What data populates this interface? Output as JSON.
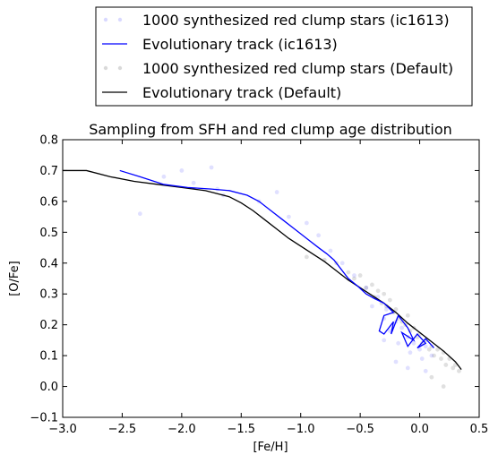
{
  "chart_data": {
    "type": "scatter",
    "title": "Sampling from SFH and red clump age distribution",
    "xlabel": "[Fe/H]",
    "ylabel": "[O/Fe]",
    "xlim": [
      -3.0,
      0.5
    ],
    "ylim": [
      -0.1,
      0.8
    ],
    "xticks": [
      -3.0,
      -2.5,
      -2.0,
      -1.5,
      -1.0,
      -0.5,
      0.0,
      0.5
    ],
    "xtick_labels": [
      "−3.0",
      "−2.5",
      "−2.0",
      "−1.5",
      "−1.0",
      "−0.5",
      "0.0",
      "0.5"
    ],
    "yticks": [
      -0.1,
      0.0,
      0.1,
      0.2,
      0.3,
      0.4,
      0.5,
      0.6,
      0.7,
      0.8
    ],
    "ytick_labels": [
      "−0.1",
      "0.0",
      "0.1",
      "0.2",
      "0.3",
      "0.4",
      "0.5",
      "0.6",
      "0.7",
      "0.8"
    ],
    "legend_placement": "above plot",
    "grid": false,
    "colors": {
      "ic1613": "#0000ff",
      "default": "#000000"
    },
    "legend": [
      {
        "label": "1000 synthesized red clump stars (ic1613)",
        "kind": "marker",
        "color": "#0000ff"
      },
      {
        "label": "Evolutionary track (ic1613)",
        "kind": "line",
        "color": "#0000ff"
      },
      {
        "label": "1000 synthesized red clump stars (Default)",
        "kind": "marker",
        "color": "#000000"
      },
      {
        "label": "Evolutionary track (Default)",
        "kind": "line",
        "color": "#000000"
      }
    ],
    "series": [
      {
        "name": "Evolutionary track (Default)",
        "kind": "line",
        "color": "#000000",
        "x": [
          -3.0,
          -2.8,
          -2.6,
          -2.4,
          -2.2,
          -2.0,
          -1.8,
          -1.6,
          -1.5,
          -1.4,
          -1.3,
          -1.2,
          -1.1,
          -1.0,
          -0.9,
          -0.8,
          -0.7,
          -0.6,
          -0.5,
          -0.4,
          -0.3,
          -0.2,
          -0.1,
          0.0,
          0.1,
          0.2,
          0.3,
          0.35
        ],
        "y": [
          0.7,
          0.7,
          0.68,
          0.665,
          0.655,
          0.645,
          0.635,
          0.615,
          0.595,
          0.57,
          0.54,
          0.51,
          0.48,
          0.455,
          0.43,
          0.405,
          0.375,
          0.345,
          0.32,
          0.295,
          0.27,
          0.24,
          0.205,
          0.175,
          0.145,
          0.115,
          0.08,
          0.055
        ]
      },
      {
        "name": "Evolutionary track (ic1613)",
        "kind": "line",
        "color": "#0000ff",
        "x": [
          -2.52,
          -2.35,
          -2.15,
          -1.95,
          -1.75,
          -1.6,
          -1.45,
          -1.35,
          -1.25,
          -1.15,
          -1.05,
          -0.95,
          -0.85,
          -0.78,
          -0.72,
          -0.66,
          -0.6,
          -0.52,
          -0.45,
          -0.38,
          -0.3,
          -0.22,
          -0.3,
          -0.34,
          -0.3,
          -0.22,
          -0.24,
          -0.18,
          -0.1,
          -0.05,
          -0.15,
          -0.1,
          -0.02,
          0.05,
          -0.02,
          0.05,
          0.12
        ],
        "y": [
          0.7,
          0.68,
          0.655,
          0.645,
          0.64,
          0.635,
          0.62,
          0.6,
          0.57,
          0.54,
          0.51,
          0.48,
          0.45,
          0.43,
          0.41,
          0.38,
          0.35,
          0.325,
          0.3,
          0.285,
          0.27,
          0.24,
          0.23,
          0.18,
          0.17,
          0.21,
          0.17,
          0.23,
          0.19,
          0.15,
          0.175,
          0.13,
          0.17,
          0.14,
          0.125,
          0.155,
          0.125
        ]
      },
      {
        "name": "1000 synthesized red clump stars (Default)",
        "kind": "scatter",
        "color": "#000000",
        "opacity": 0.12,
        "x": [
          -0.95,
          -0.8,
          -0.7,
          -0.6,
          -0.55,
          -0.5,
          -0.45,
          -0.4,
          -0.38,
          -0.35,
          -0.32,
          -0.3,
          -0.28,
          -0.25,
          -0.22,
          -0.2,
          -0.18,
          -0.15,
          -0.12,
          -0.1,
          -0.08,
          -0.05,
          -0.02,
          0.0,
          0.02,
          0.05,
          0.08,
          0.1,
          0.12,
          0.15,
          0.18,
          0.2,
          0.22,
          0.25,
          0.28,
          0.3,
          0.33,
          0.1,
          0.2
        ],
        "y": [
          0.42,
          0.41,
          0.4,
          0.37,
          0.35,
          0.36,
          0.32,
          0.33,
          0.29,
          0.31,
          0.27,
          0.3,
          0.26,
          0.28,
          0.24,
          0.25,
          0.22,
          0.21,
          0.2,
          0.23,
          0.18,
          0.19,
          0.16,
          0.17,
          0.14,
          0.15,
          0.12,
          0.13,
          0.1,
          0.12,
          0.09,
          0.11,
          0.07,
          0.09,
          0.06,
          0.07,
          0.05,
          0.03,
          0.0
        ]
      },
      {
        "name": "1000 synthesized red clump stars (ic1613)",
        "kind": "scatter",
        "color": "#0000ff",
        "opacity": 0.12,
        "x": [
          -2.35,
          -2.15,
          -2.0,
          -1.9,
          -1.75,
          -1.7,
          -1.65,
          -1.35,
          -1.2,
          -1.1,
          -0.95,
          -0.85,
          -0.75,
          -0.65,
          -0.55,
          -0.45,
          -0.4,
          -0.35,
          -0.3,
          -0.28,
          -0.25,
          -0.2,
          -0.18,
          -0.15,
          -0.1,
          -0.08,
          -0.05,
          0.0,
          0.02,
          0.05,
          0.1,
          -0.3,
          -0.2,
          -0.1,
          0.05
        ],
        "y": [
          0.56,
          0.68,
          0.7,
          0.66,
          0.71,
          0.64,
          0.62,
          0.6,
          0.63,
          0.55,
          0.53,
          0.49,
          0.44,
          0.4,
          0.36,
          0.32,
          0.26,
          0.29,
          0.22,
          0.25,
          0.18,
          0.21,
          0.14,
          0.19,
          0.16,
          0.11,
          0.14,
          0.12,
          0.09,
          0.13,
          0.1,
          0.15,
          0.08,
          0.06,
          0.05
        ]
      }
    ]
  }
}
